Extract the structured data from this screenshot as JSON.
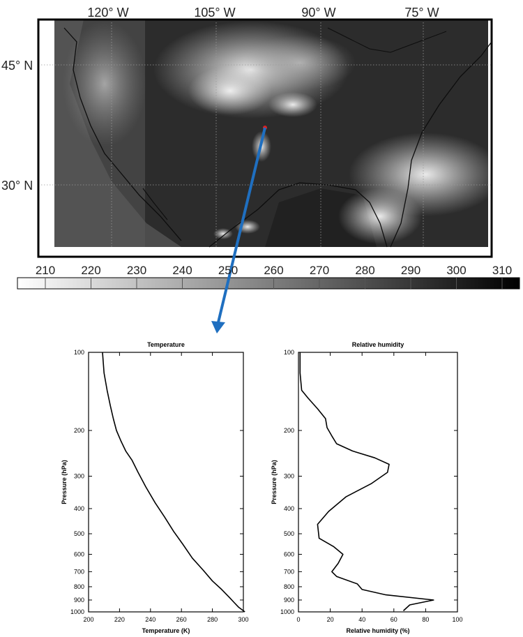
{
  "map": {
    "lon_labels": [
      "120° W",
      "105° W",
      "90° W",
      "75° W"
    ],
    "lat_labels": [
      "45° N",
      "30° N"
    ],
    "colorbar": {
      "ticks": [
        "210",
        "220",
        "230",
        "240",
        "250",
        "260",
        "270",
        "280",
        "290",
        "300",
        "310"
      ],
      "range": [
        210,
        310
      ],
      "colors": [
        "#ffffff",
        "#000000"
      ]
    },
    "marker_color": "#e02020",
    "arrow_color": "#1f6fc0"
  },
  "chart_data": [
    {
      "type": "line",
      "title": "Temperature",
      "xlabel": "Temperature (K)",
      "ylabel": "Pressure (hPa)",
      "xlim": [
        200,
        300
      ],
      "ylim": [
        1000,
        100
      ],
      "y_scale": "log",
      "x_ticks": [
        "200",
        "220",
        "240",
        "260",
        "280",
        "300"
      ],
      "y_ticks": [
        "100",
        "200",
        "300",
        "400",
        "500",
        "600",
        "700",
        "800",
        "900",
        "1000"
      ],
      "grid": false,
      "series": [
        {
          "points": [
            [
              209,
              100
            ],
            [
              210,
              120
            ],
            [
              212,
              140
            ],
            [
              214,
              160
            ],
            [
              216,
              180
            ],
            [
              218,
              200
            ],
            [
              221,
              220
            ],
            [
              224,
              240
            ],
            [
              228,
              260
            ],
            [
              232,
              290
            ],
            [
              237,
              330
            ],
            [
              243,
              380
            ],
            [
              249,
              430
            ],
            [
              255,
              490
            ],
            [
              261,
              550
            ],
            [
              267,
              620
            ],
            [
              274,
              690
            ],
            [
              280,
              760
            ],
            [
              286,
              820
            ],
            [
              291,
              880
            ],
            [
              294,
              920
            ],
            [
              297,
              960
            ],
            [
              301,
              1000
            ]
          ]
        }
      ]
    },
    {
      "type": "line",
      "title": "Relative humidity",
      "xlabel": "Relative humidity (%)",
      "ylabel": "Pressure (hPa)",
      "xlim": [
        0,
        100
      ],
      "ylim": [
        1000,
        100
      ],
      "y_scale": "log",
      "x_ticks": [
        "0",
        "20",
        "40",
        "60",
        "80",
        "100"
      ],
      "y_ticks": [
        "100",
        "200",
        "300",
        "400",
        "500",
        "600",
        "700",
        "800",
        "900",
        "1000"
      ],
      "grid": false,
      "series": [
        {
          "points": [
            [
              1,
              100
            ],
            [
              1,
              120
            ],
            [
              2,
              140
            ],
            [
              6,
              150
            ],
            [
              12,
              165
            ],
            [
              17,
              180
            ],
            [
              18,
              195
            ],
            [
              21,
              210
            ],
            [
              24,
              225
            ],
            [
              34,
              240
            ],
            [
              48,
              255
            ],
            [
              57,
              270
            ],
            [
              56,
              290
            ],
            [
              46,
              320
            ],
            [
              30,
              360
            ],
            [
              19,
              410
            ],
            [
              12,
              460
            ],
            [
              13,
              520
            ],
            [
              22,
              560
            ],
            [
              28,
              600
            ],
            [
              25,
              650
            ],
            [
              21,
              700
            ],
            [
              24,
              730
            ],
            [
              37,
              780
            ],
            [
              40,
              820
            ],
            [
              55,
              860
            ],
            [
              85,
              900
            ],
            [
              70,
              940
            ],
            [
              66,
              990
            ]
          ]
        }
      ]
    }
  ]
}
